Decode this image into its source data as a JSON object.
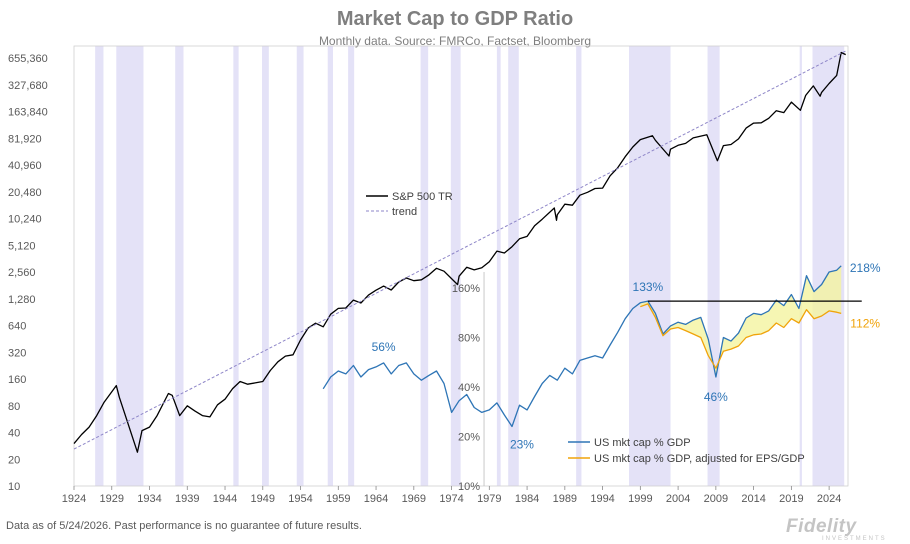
{
  "chart_data": {
    "type": "line",
    "title": "Market Cap to GDP Ratio",
    "subtitle": "Monthly data.  Source: FMRCo, Factset, Bloomberg",
    "x_tick_labels": [
      "1924",
      "1929",
      "1934",
      "1939",
      "1944",
      "1949",
      "1954",
      "1959",
      "1964",
      "1969",
      "1974",
      "1979",
      "1984",
      "1989",
      "1994",
      "1999",
      "2004",
      "2009",
      "2014",
      "2019",
      "2024"
    ],
    "xlim": [
      1924,
      2026.5
    ],
    "left_axis": {
      "scale": "log",
      "ylim": [
        10,
        900000
      ],
      "tick_values": [
        10,
        20,
        40,
        80,
        160,
        320,
        640,
        1280,
        2560,
        5120,
        10240,
        20480,
        40960,
        81920,
        163840,
        327680,
        655360
      ],
      "tick_labels": [
        "10",
        "20",
        "40",
        "80",
        "160",
        "320",
        "640",
        "1,280",
        "2,560",
        "5,120",
        "10,240",
        "20,480",
        "40,960",
        "81,920",
        "163,840",
        "327,680",
        "655,360"
      ]
    },
    "inset_axis": {
      "scale": "log",
      "ylim": [
        10,
        200
      ],
      "tick_values": [
        10,
        20,
        40,
        80,
        160
      ],
      "tick_labels": [
        "10%",
        "20%",
        "40%",
        "80%",
        "160%"
      ]
    },
    "recession_shading": [
      [
        1926.8,
        1927.9
      ],
      [
        1929.6,
        1933.2
      ],
      [
        1937.4,
        1938.5
      ],
      [
        1945.1,
        1945.8
      ],
      [
        1948.9,
        1949.8
      ],
      [
        1953.5,
        1954.4
      ],
      [
        1957.6,
        1958.3
      ],
      [
        1960.3,
        1961.1
      ],
      [
        1969.9,
        1970.9
      ],
      [
        1973.9,
        1975.2
      ],
      [
        1980.0,
        1980.5
      ],
      [
        1981.5,
        1982.9
      ],
      [
        1990.5,
        1991.2
      ],
      [
        1997.5,
        2003.0
      ],
      [
        2007.9,
        2009.5
      ],
      [
        2020.1,
        2020.4
      ],
      [
        2021.8,
        2026.0
      ]
    ],
    "series": [
      {
        "name": "S&P 500 TR",
        "axis": "left",
        "color": "#000000",
        "points": [
          [
            1924,
            30
          ],
          [
            1925,
            38
          ],
          [
            1926,
            46
          ],
          [
            1927,
            62
          ],
          [
            1928,
            88
          ],
          [
            1929.6,
            135
          ],
          [
            1930,
            100
          ],
          [
            1931,
            55
          ],
          [
            1932.4,
            24
          ],
          [
            1933,
            42
          ],
          [
            1934,
            46
          ],
          [
            1935,
            62
          ],
          [
            1936.5,
            110
          ],
          [
            1937,
            105
          ],
          [
            1938,
            62
          ],
          [
            1939,
            80
          ],
          [
            1940,
            70
          ],
          [
            1941,
            62
          ],
          [
            1942,
            60
          ],
          [
            1943,
            82
          ],
          [
            1944,
            95
          ],
          [
            1945,
            125
          ],
          [
            1946,
            150
          ],
          [
            1947,
            140
          ],
          [
            1948,
            145
          ],
          [
            1949,
            150
          ],
          [
            1950,
            200
          ],
          [
            1951,
            250
          ],
          [
            1952,
            290
          ],
          [
            1953,
            300
          ],
          [
            1954,
            440
          ],
          [
            1955,
            600
          ],
          [
            1956,
            680
          ],
          [
            1957,
            620
          ],
          [
            1958,
            860
          ],
          [
            1959,
            1000
          ],
          [
            1960,
            1010
          ],
          [
            1961,
            1240
          ],
          [
            1962,
            1150
          ],
          [
            1963,
            1410
          ],
          [
            1964,
            1600
          ],
          [
            1965,
            1780
          ],
          [
            1966,
            1610
          ],
          [
            1967,
            1980
          ],
          [
            1968,
            2200
          ],
          [
            1969,
            2050
          ],
          [
            1970,
            2100
          ],
          [
            1971,
            2380
          ],
          [
            1972,
            2830
          ],
          [
            1973,
            2620
          ],
          [
            1974.8,
            1850
          ],
          [
            1975,
            2300
          ],
          [
            1976,
            2900
          ],
          [
            1977,
            2710
          ],
          [
            1978,
            2870
          ],
          [
            1979,
            3350
          ],
          [
            1980,
            4420
          ],
          [
            1981,
            4200
          ],
          [
            1982,
            4950
          ],
          [
            1983,
            6080
          ],
          [
            1984,
            6460
          ],
          [
            1985,
            8500
          ],
          [
            1986,
            10100
          ],
          [
            1987.6,
            13500
          ],
          [
            1987.9,
            9800
          ],
          [
            1988,
            11300
          ],
          [
            1989,
            14900
          ],
          [
            1990,
            14500
          ],
          [
            1991,
            18800
          ],
          [
            1992,
            20300
          ],
          [
            1993,
            22400
          ],
          [
            1994,
            22600
          ],
          [
            1995,
            31100
          ],
          [
            1996,
            38300
          ],
          [
            1997,
            51000
          ],
          [
            1998,
            65600
          ],
          [
            1999,
            79400
          ],
          [
            2000.6,
            88000
          ],
          [
            2001,
            78000
          ],
          [
            2002.8,
            52000
          ],
          [
            2003,
            62000
          ],
          [
            2004,
            68500
          ],
          [
            2005,
            72000
          ],
          [
            2006,
            83000
          ],
          [
            2007.8,
            90000
          ],
          [
            2009.2,
            46000
          ],
          [
            2010,
            68000
          ],
          [
            2011,
            70000
          ],
          [
            2012,
            81000
          ],
          [
            2013,
            107000
          ],
          [
            2014,
            122000
          ],
          [
            2015,
            123000
          ],
          [
            2016,
            138000
          ],
          [
            2017,
            168000
          ],
          [
            2018,
            160000
          ],
          [
            2019,
            210000
          ],
          [
            2020.2,
            170000
          ],
          [
            2020.9,
            250000
          ],
          [
            2021.9,
            320000
          ],
          [
            2022.8,
            245000
          ],
          [
            2023,
            270000
          ],
          [
            2024,
            340000
          ],
          [
            2025,
            420000
          ],
          [
            2025.6,
            760000
          ],
          [
            2026.2,
            720000
          ]
        ]
      },
      {
        "name": "trend",
        "axis": "left",
        "color": "#8e86c8",
        "dashed": true,
        "points": [
          [
            1924,
            26
          ],
          [
            2026.2,
            790000
          ]
        ]
      },
      {
        "name": "US mkt cap % GDP",
        "axis": "inset",
        "color": "#2e75b6",
        "points": [
          [
            1957,
            39
          ],
          [
            1958,
            46
          ],
          [
            1959,
            50
          ],
          [
            1960,
            48
          ],
          [
            1961,
            54
          ],
          [
            1962,
            46
          ],
          [
            1963,
            51
          ],
          [
            1964,
            53
          ],
          [
            1965,
            56
          ],
          [
            1966,
            48
          ],
          [
            1967,
            54
          ],
          [
            1968,
            56
          ],
          [
            1969,
            48
          ],
          [
            1970,
            44
          ],
          [
            1971,
            47
          ],
          [
            1972,
            50
          ],
          [
            1973,
            42
          ],
          [
            1974,
            28
          ],
          [
            1975,
            33
          ],
          [
            1976,
            36
          ],
          [
            1977,
            30
          ],
          [
            1978,
            28
          ],
          [
            1979,
            29
          ],
          [
            1980,
            32
          ],
          [
            1981,
            27
          ],
          [
            1982,
            23
          ],
          [
            1983,
            31
          ],
          [
            1984,
            29
          ],
          [
            1985,
            35
          ],
          [
            1986,
            42
          ],
          [
            1987,
            47
          ],
          [
            1988,
            44
          ],
          [
            1989,
            52
          ],
          [
            1990,
            48
          ],
          [
            1991,
            58
          ],
          [
            1992,
            60
          ],
          [
            1993,
            62
          ],
          [
            1994,
            60
          ],
          [
            1995,
            72
          ],
          [
            1996,
            86
          ],
          [
            1997,
            104
          ],
          [
            1998,
            120
          ],
          [
            1999,
            130
          ],
          [
            2000,
            133
          ],
          [
            2001,
            112
          ],
          [
            2002,
            84
          ],
          [
            2003,
            94
          ],
          [
            2004,
            99
          ],
          [
            2005,
            96
          ],
          [
            2006,
            102
          ],
          [
            2007,
            106
          ],
          [
            2008,
            78
          ],
          [
            2009,
            46
          ],
          [
            2010,
            80
          ],
          [
            2011,
            76
          ],
          [
            2012,
            85
          ],
          [
            2013,
            105
          ],
          [
            2014,
            112
          ],
          [
            2015,
            110
          ],
          [
            2016,
            116
          ],
          [
            2017,
            135
          ],
          [
            2018,
            125
          ],
          [
            2019,
            146
          ],
          [
            2020,
            120
          ],
          [
            2021,
            190
          ],
          [
            2022,
            152
          ],
          [
            2023,
            168
          ],
          [
            2024,
            200
          ],
          [
            2025,
            205
          ],
          [
            2025.6,
            218
          ]
        ]
      },
      {
        "name": "US mkt cap % GDP, adjusted for EPS/GDP",
        "axis": "inset",
        "color": "#f0a30a",
        "points": [
          [
            1999,
            123
          ],
          [
            2000,
            128
          ],
          [
            2001,
            106
          ],
          [
            2002,
            82
          ],
          [
            2003,
            90
          ],
          [
            2004,
            92
          ],
          [
            2005,
            88
          ],
          [
            2006,
            84
          ],
          [
            2007,
            80
          ],
          [
            2008,
            62
          ],
          [
            2009,
            52
          ],
          [
            2010,
            66
          ],
          [
            2011,
            68
          ],
          [
            2012,
            71
          ],
          [
            2013,
            80
          ],
          [
            2014,
            83
          ],
          [
            2015,
            84
          ],
          [
            2016,
            88
          ],
          [
            2017,
            98
          ],
          [
            2018,
            92
          ],
          [
            2019,
            104
          ],
          [
            2020,
            98
          ],
          [
            2021,
            118
          ],
          [
            2022,
            104
          ],
          [
            2023,
            108
          ],
          [
            2024,
            116
          ],
          [
            2025,
            114
          ],
          [
            2025.6,
            112
          ]
        ]
      }
    ],
    "reference_line": {
      "axis": "inset",
      "value": 133,
      "x_from": 2000,
      "x_to": 2026.2
    },
    "annotations": [
      {
        "text": "56%",
        "x": 1965,
        "y": 56,
        "axis": "inset",
        "color": "#2e75b6"
      },
      {
        "text": "23%",
        "x": 1982,
        "y": 23,
        "axis": "inset",
        "color": "#2e75b6"
      },
      {
        "text": "133%",
        "x": 2000,
        "y": 133,
        "axis": "inset",
        "color": "#2e75b6"
      },
      {
        "text": "46%",
        "x": 2009,
        "y": 46,
        "axis": "inset",
        "color": "#2e75b6"
      },
      {
        "text": "218%",
        "x": 2025.6,
        "y": 218,
        "axis": "inset",
        "color": "#2e75b6"
      },
      {
        "text": "112%",
        "x": 2025.6,
        "y": 112,
        "axis": "inset",
        "color": "#f0a30a"
      }
    ],
    "legend_top": [
      "S&P 500 TR",
      "trend"
    ],
    "legend_bottom": [
      "US mkt cap % GDP",
      "US mkt cap % GDP, adjusted for EPS/GDP"
    ],
    "colors": {
      "recession": "#e4e2f7",
      "gap_fill": "#f4f4a0",
      "axis_text": "#595959"
    }
  },
  "footnote": "Data as of 5/24/2026. Past performance is no guarantee of future results.",
  "logo_text": "Fidelity",
  "logo_subtext": "INVESTMENTS"
}
